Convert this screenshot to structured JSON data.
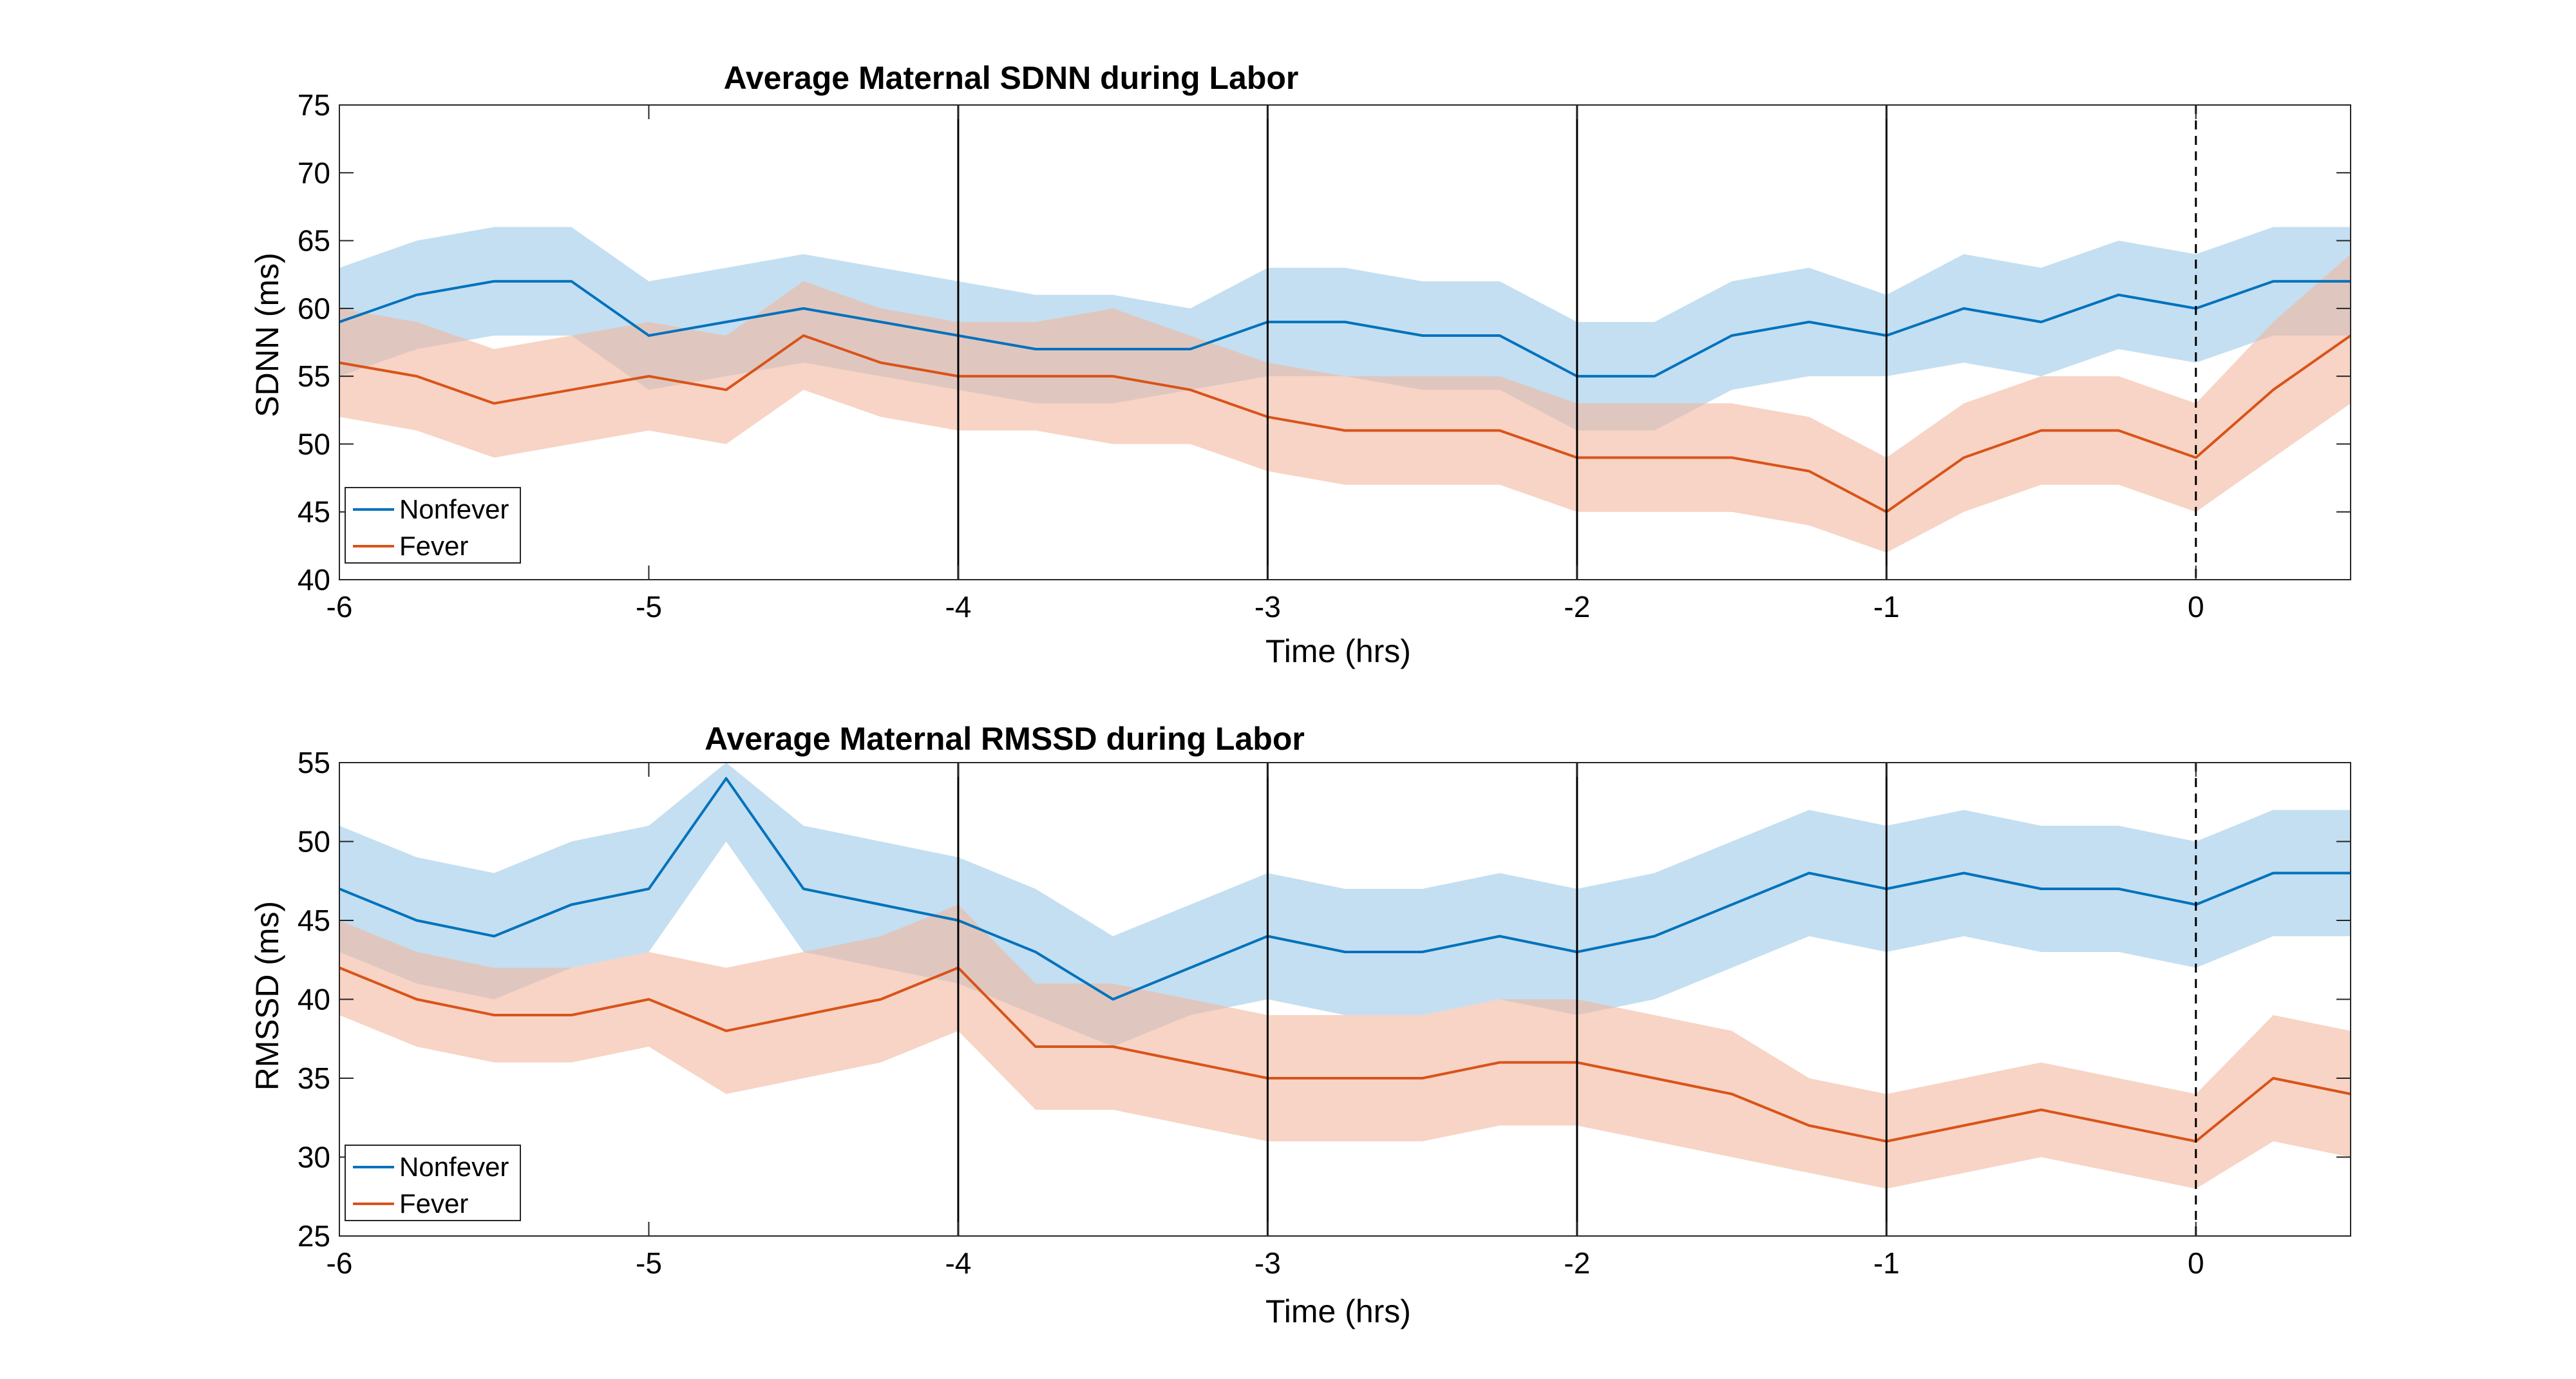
{
  "colors": {
    "nonfever": "#0072BD",
    "nonfever_band": "#9CCAE8",
    "fever": "#D95319",
    "fever_band": "#F2B79F",
    "axes": "#262626"
  },
  "chart_data": [
    {
      "type": "line",
      "title": "Average Maternal SDNN during Labor",
      "xlabel": "Time (hrs)",
      "ylabel": "SDNN (ms)",
      "xlim": [
        -6,
        0.5
      ],
      "ylim": [
        40,
        75
      ],
      "xticks": [
        -6,
        -5,
        -4,
        -3,
        -2,
        -1,
        0
      ],
      "yticks": [
        40,
        45,
        50,
        55,
        60,
        65,
        70,
        75
      ],
      "vlines_solid": [
        -4,
        -3,
        -2,
        -1
      ],
      "vlines_dashed": [
        0
      ],
      "legend": {
        "position": "bottom-left",
        "entries": [
          "Nonfever",
          "Fever"
        ]
      },
      "x": [
        -6.0,
        -5.75,
        -5.5,
        -5.25,
        -5.0,
        -4.75,
        -4.5,
        -4.25,
        -4.0,
        -3.75,
        -3.5,
        -3.25,
        -3.0,
        -2.75,
        -2.5,
        -2.25,
        -2.0,
        -1.75,
        -1.5,
        -1.25,
        -1.0,
        -0.75,
        -0.5,
        -0.25,
        0.0,
        0.25,
        0.5
      ],
      "series": [
        {
          "name": "Nonfever",
          "values": [
            59,
            61,
            62,
            62,
            58,
            59,
            60,
            59,
            58,
            57,
            57,
            57,
            59,
            59,
            58,
            58,
            55,
            55,
            58,
            59,
            58,
            60,
            59,
            61,
            60,
            62,
            62
          ],
          "lower": [
            55,
            57,
            58,
            58,
            54,
            55,
            56,
            55,
            54,
            53,
            53,
            54,
            55,
            55,
            54,
            54,
            51,
            51,
            54,
            55,
            55,
            56,
            55,
            57,
            56,
            58,
            58
          ],
          "upper": [
            63,
            65,
            66,
            66,
            62,
            63,
            64,
            63,
            62,
            61,
            61,
            60,
            63,
            63,
            62,
            62,
            59,
            59,
            62,
            63,
            61,
            64,
            63,
            65,
            64,
            66,
            66
          ]
        },
        {
          "name": "Fever",
          "values": [
            56,
            55,
            53,
            54,
            55,
            54,
            58,
            56,
            55,
            55,
            55,
            54,
            52,
            51,
            51,
            51,
            49,
            49,
            49,
            48,
            45,
            49,
            51,
            51,
            49,
            54,
            58
          ],
          "lower": [
            52,
            51,
            49,
            50,
            51,
            50,
            54,
            52,
            51,
            51,
            50,
            50,
            48,
            47,
            47,
            47,
            45,
            45,
            45,
            44,
            42,
            45,
            47,
            47,
            45,
            49,
            53
          ],
          "upper": [
            60,
            59,
            57,
            58,
            59,
            58,
            62,
            60,
            59,
            59,
            60,
            58,
            56,
            55,
            55,
            55,
            53,
            53,
            53,
            52,
            49,
            53,
            55,
            55,
            53,
            59,
            64
          ]
        }
      ]
    },
    {
      "type": "line",
      "title": "Average Maternal RMSSD during Labor",
      "xlabel": "Time (hrs)",
      "ylabel": "RMSSD (ms)",
      "xlim": [
        -6,
        0.5
      ],
      "ylim": [
        25,
        55
      ],
      "xticks": [
        -6,
        -5,
        -4,
        -3,
        -2,
        -1,
        0
      ],
      "yticks": [
        25,
        30,
        35,
        40,
        45,
        50,
        55
      ],
      "vlines_solid": [
        -4,
        -3,
        -2,
        -1
      ],
      "vlines_dashed": [
        0
      ],
      "legend": {
        "position": "bottom-left",
        "entries": [
          "Nonfever",
          "Fever"
        ]
      },
      "x": [
        -6.0,
        -5.75,
        -5.5,
        -5.25,
        -5.0,
        -4.75,
        -4.5,
        -4.25,
        -4.0,
        -3.75,
        -3.5,
        -3.25,
        -3.0,
        -2.75,
        -2.5,
        -2.25,
        -2.0,
        -1.75,
        -1.5,
        -1.25,
        -1.0,
        -0.75,
        -0.5,
        -0.25,
        0.0,
        0.25,
        0.5
      ],
      "series": [
        {
          "name": "Nonfever",
          "values": [
            47,
            45,
            44,
            46,
            47,
            54,
            47,
            46,
            45,
            43,
            40,
            42,
            44,
            43,
            43,
            44,
            43,
            44,
            46,
            48,
            47,
            48,
            47,
            47,
            46,
            48,
            48
          ],
          "lower": [
            43,
            41,
            40,
            42,
            43,
            50,
            43,
            42,
            41,
            39,
            37,
            39,
            40,
            39,
            39,
            40,
            39,
            40,
            42,
            44,
            43,
            44,
            43,
            43,
            42,
            44,
            44
          ],
          "upper": [
            51,
            49,
            48,
            50,
            51,
            55,
            51,
            50,
            49,
            47,
            44,
            46,
            48,
            47,
            47,
            48,
            47,
            48,
            50,
            52,
            51,
            52,
            51,
            51,
            50,
            52,
            52
          ]
        },
        {
          "name": "Fever",
          "values": [
            42,
            40,
            39,
            39,
            40,
            38,
            39,
            40,
            42,
            37,
            37,
            36,
            35,
            35,
            35,
            36,
            36,
            35,
            34,
            32,
            31,
            32,
            33,
            32,
            31,
            35,
            34
          ],
          "lower": [
            39,
            37,
            36,
            36,
            37,
            34,
            35,
            36,
            38,
            33,
            33,
            32,
            31,
            31,
            31,
            32,
            32,
            31,
            30,
            29,
            28,
            29,
            30,
            29,
            28,
            31,
            30
          ],
          "upper": [
            45,
            43,
            42,
            42,
            43,
            42,
            43,
            44,
            46,
            41,
            41,
            40,
            39,
            39,
            39,
            40,
            40,
            39,
            38,
            35,
            34,
            35,
            36,
            35,
            34,
            39,
            38
          ]
        }
      ]
    }
  ]
}
